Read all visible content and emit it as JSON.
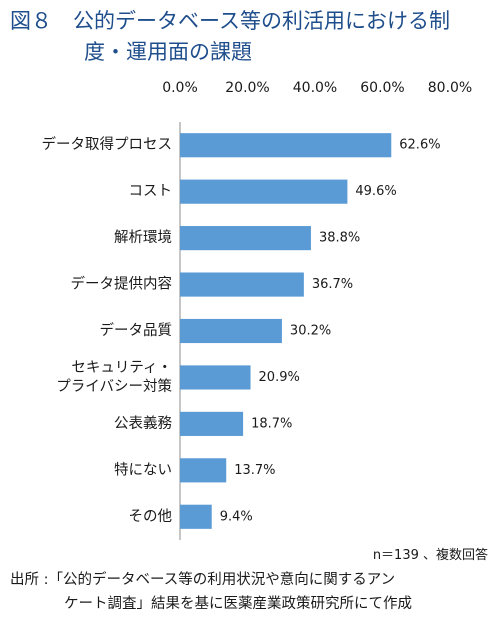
{
  "figure": {
    "title_line1": "図８　公的データベース等の利活用における制",
    "title_line2": "度・運用面の課題",
    "note": "n＝139 、複数回答",
    "source_line1": "出所 :「公的データベース等の利用状況や意向に関するアン",
    "source_line2": "ケート調査」結果を基に医薬産業政策研究所にて作成"
  },
  "chart_data": {
    "type": "bar",
    "orientation": "horizontal",
    "categories": [
      [
        "データ取得プロセス"
      ],
      [
        "コスト"
      ],
      [
        "解析環境"
      ],
      [
        "データ提供内容"
      ],
      [
        "データ品質"
      ],
      [
        "セキュリティ・",
        "プライバシー対策"
      ],
      [
        "公表義務"
      ],
      [
        "特にない"
      ],
      [
        "その他"
      ]
    ],
    "values": [
      62.6,
      49.6,
      38.8,
      36.7,
      30.2,
      20.9,
      18.7,
      13.7,
      9.4
    ],
    "value_labels": [
      "62.6%",
      "49.6%",
      "38.8%",
      "36.7%",
      "30.2%",
      "20.9%",
      "18.7%",
      "13.7%",
      "9.4%"
    ],
    "xlim": [
      0,
      80
    ],
    "xticks": [
      0,
      20,
      40,
      60,
      80
    ],
    "xtick_labels": [
      "0.0%",
      "20.0%",
      "40.0%",
      "60.0%",
      "80.0%"
    ],
    "axis_position": "top",
    "grid": false,
    "bar_color": "#5b9bd5",
    "axis_color": "#8c8c8c"
  }
}
